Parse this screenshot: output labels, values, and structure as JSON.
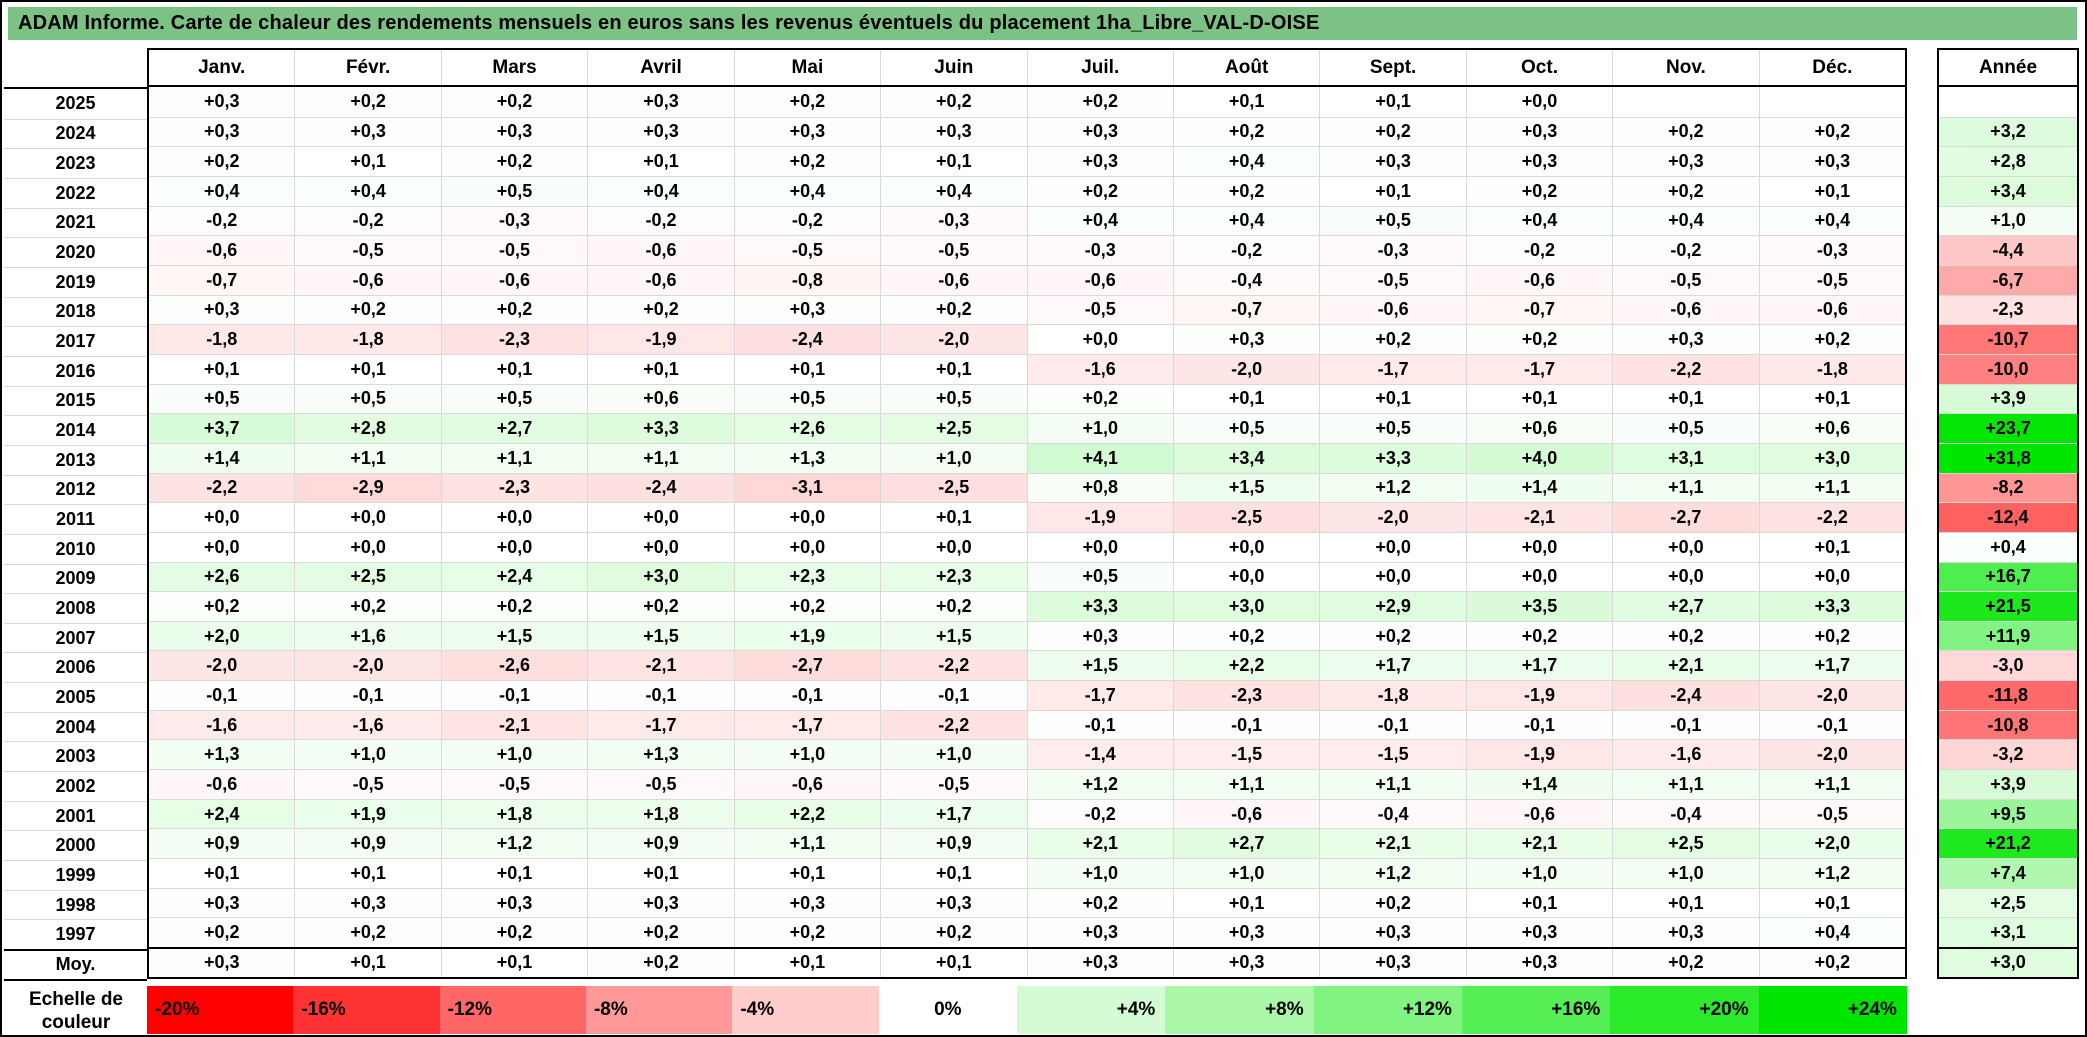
{
  "title": "ADAM Informe. Carte de chaleur des rendements mensuels en euros sans les revenus éventuels du placement 1ha_Libre_VAL-D-OISE",
  "colors": {
    "title_bg": "#7CC284",
    "negative_end": "#FF0000",
    "positive_end": "#00E600",
    "neutral": "#FFFFFF",
    "grid_line": "#D9D9D9",
    "table_border": "#000000"
  },
  "chart_data": {
    "type": "heatmap",
    "title": "ADAM Informe. Carte de chaleur des rendements mensuels en euros sans les revenus éventuels du placement 1ha_Libre_VAL-D-OISE",
    "columns": [
      "Janv.",
      "Févr.",
      "Mars",
      "Avril",
      "Mai",
      "Juin",
      "Juil.",
      "Août",
      "Sept.",
      "Oct.",
      "Nov.",
      "Déc."
    ],
    "annual_column_header": "Année",
    "value_unit": "percent, comma decimal",
    "color_scale": {
      "negative_limit": -20,
      "positive_limit": 24
    },
    "rows": [
      {
        "year": "2025",
        "months": [
          "+0,3",
          "+0,2",
          "+0,2",
          "+0,3",
          "+0,2",
          "+0,2",
          "+0,2",
          "+0,1",
          "+0,1",
          "+0,0",
          "",
          ""
        ],
        "annual": ""
      },
      {
        "year": "2024",
        "months": [
          "+0,3",
          "+0,3",
          "+0,3",
          "+0,3",
          "+0,3",
          "+0,3",
          "+0,3",
          "+0,2",
          "+0,2",
          "+0,3",
          "+0,2",
          "+0,2"
        ],
        "annual": "+3,2"
      },
      {
        "year": "2023",
        "months": [
          "+0,2",
          "+0,1",
          "+0,2",
          "+0,1",
          "+0,2",
          "+0,1",
          "+0,3",
          "+0,4",
          "+0,3",
          "+0,3",
          "+0,3",
          "+0,3"
        ],
        "annual": "+2,8"
      },
      {
        "year": "2022",
        "months": [
          "+0,4",
          "+0,4",
          "+0,5",
          "+0,4",
          "+0,4",
          "+0,4",
          "+0,2",
          "+0,2",
          "+0,1",
          "+0,2",
          "+0,2",
          "+0,1"
        ],
        "annual": "+3,4"
      },
      {
        "year": "2021",
        "months": [
          "-0,2",
          "-0,2",
          "-0,3",
          "-0,2",
          "-0,2",
          "-0,3",
          "+0,4",
          "+0,4",
          "+0,5",
          "+0,4",
          "+0,4",
          "+0,4"
        ],
        "annual": "+1,0"
      },
      {
        "year": "2020",
        "months": [
          "-0,6",
          "-0,5",
          "-0,5",
          "-0,6",
          "-0,5",
          "-0,5",
          "-0,3",
          "-0,2",
          "-0,3",
          "-0,2",
          "-0,2",
          "-0,3"
        ],
        "annual": "-4,4"
      },
      {
        "year": "2019",
        "months": [
          "-0,7",
          "-0,6",
          "-0,6",
          "-0,6",
          "-0,8",
          "-0,6",
          "-0,6",
          "-0,4",
          "-0,5",
          "-0,6",
          "-0,5",
          "-0,5"
        ],
        "annual": "-6,7"
      },
      {
        "year": "2018",
        "months": [
          "+0,3",
          "+0,2",
          "+0,2",
          "+0,2",
          "+0,3",
          "+0,2",
          "-0,5",
          "-0,7",
          "-0,6",
          "-0,7",
          "-0,6",
          "-0,6"
        ],
        "annual": "-2,3"
      },
      {
        "year": "2017",
        "months": [
          "-1,8",
          "-1,8",
          "-2,3",
          "-1,9",
          "-2,4",
          "-2,0",
          "+0,0",
          "+0,3",
          "+0,2",
          "+0,2",
          "+0,3",
          "+0,2"
        ],
        "annual": "-10,7"
      },
      {
        "year": "2016",
        "months": [
          "+0,1",
          "+0,1",
          "+0,1",
          "+0,1",
          "+0,1",
          "+0,1",
          "-1,6",
          "-2,0",
          "-1,7",
          "-1,7",
          "-2,2",
          "-1,8"
        ],
        "annual": "-10,0"
      },
      {
        "year": "2015",
        "months": [
          "+0,5",
          "+0,5",
          "+0,5",
          "+0,6",
          "+0,5",
          "+0,5",
          "+0,2",
          "+0,1",
          "+0,1",
          "+0,1",
          "+0,1",
          "+0,1"
        ],
        "annual": "+3,9"
      },
      {
        "year": "2014",
        "months": [
          "+3,7",
          "+2,8",
          "+2,7",
          "+3,3",
          "+2,6",
          "+2,5",
          "+1,0",
          "+0,5",
          "+0,5",
          "+0,6",
          "+0,5",
          "+0,6"
        ],
        "annual": "+23,7"
      },
      {
        "year": "2013",
        "months": [
          "+1,4",
          "+1,1",
          "+1,1",
          "+1,1",
          "+1,3",
          "+1,0",
          "+4,1",
          "+3,4",
          "+3,3",
          "+4,0",
          "+3,1",
          "+3,0"
        ],
        "annual": "+31,8"
      },
      {
        "year": "2012",
        "months": [
          "-2,2",
          "-2,9",
          "-2,3",
          "-2,4",
          "-3,1",
          "-2,5",
          "+0,8",
          "+1,5",
          "+1,2",
          "+1,4",
          "+1,1",
          "+1,1"
        ],
        "annual": "-8,2"
      },
      {
        "year": "2011",
        "months": [
          "+0,0",
          "+0,0",
          "+0,0",
          "+0,0",
          "+0,0",
          "+0,1",
          "-1,9",
          "-2,5",
          "-2,0",
          "-2,1",
          "-2,7",
          "-2,2"
        ],
        "annual": "-12,4"
      },
      {
        "year": "2010",
        "months": [
          "+0,0",
          "+0,0",
          "+0,0",
          "+0,0",
          "+0,0",
          "+0,0",
          "+0,0",
          "+0,0",
          "+0,0",
          "+0,0",
          "+0,0",
          "+0,1"
        ],
        "annual": "+0,4"
      },
      {
        "year": "2009",
        "months": [
          "+2,6",
          "+2,5",
          "+2,4",
          "+3,0",
          "+2,3",
          "+2,3",
          "+0,5",
          "+0,0",
          "+0,0",
          "+0,0",
          "+0,0",
          "+0,0"
        ],
        "annual": "+16,7"
      },
      {
        "year": "2008",
        "months": [
          "+0,2",
          "+0,2",
          "+0,2",
          "+0,2",
          "+0,2",
          "+0,2",
          "+3,3",
          "+3,0",
          "+2,9",
          "+3,5",
          "+2,7",
          "+3,3"
        ],
        "annual": "+21,5"
      },
      {
        "year": "2007",
        "months": [
          "+2,0",
          "+1,6",
          "+1,5",
          "+1,5",
          "+1,9",
          "+1,5",
          "+0,3",
          "+0,2",
          "+0,2",
          "+0,2",
          "+0,2",
          "+0,2"
        ],
        "annual": "+11,9"
      },
      {
        "year": "2006",
        "months": [
          "-2,0",
          "-2,0",
          "-2,6",
          "-2,1",
          "-2,7",
          "-2,2",
          "+1,5",
          "+2,2",
          "+1,7",
          "+1,7",
          "+2,1",
          "+1,7"
        ],
        "annual": "-3,0"
      },
      {
        "year": "2005",
        "months": [
          "-0,1",
          "-0,1",
          "-0,1",
          "-0,1",
          "-0,1",
          "-0,1",
          "-1,7",
          "-2,3",
          "-1,8",
          "-1,9",
          "-2,4",
          "-2,0"
        ],
        "annual": "-11,8"
      },
      {
        "year": "2004",
        "months": [
          "-1,6",
          "-1,6",
          "-2,1",
          "-1,7",
          "-1,7",
          "-2,2",
          "-0,1",
          "-0,1",
          "-0,1",
          "-0,1",
          "-0,1",
          "-0,1"
        ],
        "annual": "-10,8"
      },
      {
        "year": "2003",
        "months": [
          "+1,3",
          "+1,0",
          "+1,0",
          "+1,3",
          "+1,0",
          "+1,0",
          "-1,4",
          "-1,5",
          "-1,5",
          "-1,9",
          "-1,6",
          "-2,0"
        ],
        "annual": "-3,2"
      },
      {
        "year": "2002",
        "months": [
          "-0,6",
          "-0,5",
          "-0,5",
          "-0,5",
          "-0,6",
          "-0,5",
          "+1,2",
          "+1,1",
          "+1,1",
          "+1,4",
          "+1,1",
          "+1,1"
        ],
        "annual": "+3,9"
      },
      {
        "year": "2001",
        "months": [
          "+2,4",
          "+1,9",
          "+1,8",
          "+1,8",
          "+2,2",
          "+1,7",
          "-0,2",
          "-0,6",
          "-0,4",
          "-0,6",
          "-0,4",
          "-0,5"
        ],
        "annual": "+9,5"
      },
      {
        "year": "2000",
        "months": [
          "+0,9",
          "+0,9",
          "+1,2",
          "+0,9",
          "+1,1",
          "+0,9",
          "+2,1",
          "+2,7",
          "+2,1",
          "+2,1",
          "+2,5",
          "+2,0"
        ],
        "annual": "+21,2"
      },
      {
        "year": "1999",
        "months": [
          "+0,1",
          "+0,1",
          "+0,1",
          "+0,1",
          "+0,1",
          "+0,1",
          "+1,0",
          "+1,0",
          "+1,2",
          "+1,0",
          "+1,0",
          "+1,2"
        ],
        "annual": "+7,4"
      },
      {
        "year": "1998",
        "months": [
          "+0,3",
          "+0,3",
          "+0,3",
          "+0,3",
          "+0,3",
          "+0,3",
          "+0,2",
          "+0,1",
          "+0,2",
          "+0,1",
          "+0,1",
          "+0,1"
        ],
        "annual": "+2,5"
      },
      {
        "year": "1997",
        "months": [
          "+0,2",
          "+0,2",
          "+0,2",
          "+0,2",
          "+0,2",
          "+0,2",
          "+0,3",
          "+0,3",
          "+0,3",
          "+0,3",
          "+0,3",
          "+0,4"
        ],
        "annual": "+3,1"
      },
      {
        "year": "Moy.",
        "is_average": true,
        "months": [
          "+0,3",
          "+0,1",
          "+0,1",
          "+0,2",
          "+0,1",
          "+0,1",
          "+0,3",
          "+0,3",
          "+0,3",
          "+0,3",
          "+0,2",
          "+0,2"
        ],
        "annual": "+3,0"
      }
    ],
    "legend": {
      "label": "Echelle de couleur",
      "stops": [
        {
          "label": "-20%",
          "value": -20
        },
        {
          "label": "-16%",
          "value": -16
        },
        {
          "label": "-12%",
          "value": -12
        },
        {
          "label": "-8%",
          "value": -8
        },
        {
          "label": "-4%",
          "value": -4
        },
        {
          "label": "0%",
          "value": 0
        },
        {
          "label": "+4%",
          "value": 4
        },
        {
          "label": "+8%",
          "value": 8
        },
        {
          "label": "+12%",
          "value": 12
        },
        {
          "label": "+16%",
          "value": 16
        },
        {
          "label": "+20%",
          "value": 20
        },
        {
          "label": "+24%",
          "value": 24
        }
      ]
    }
  }
}
